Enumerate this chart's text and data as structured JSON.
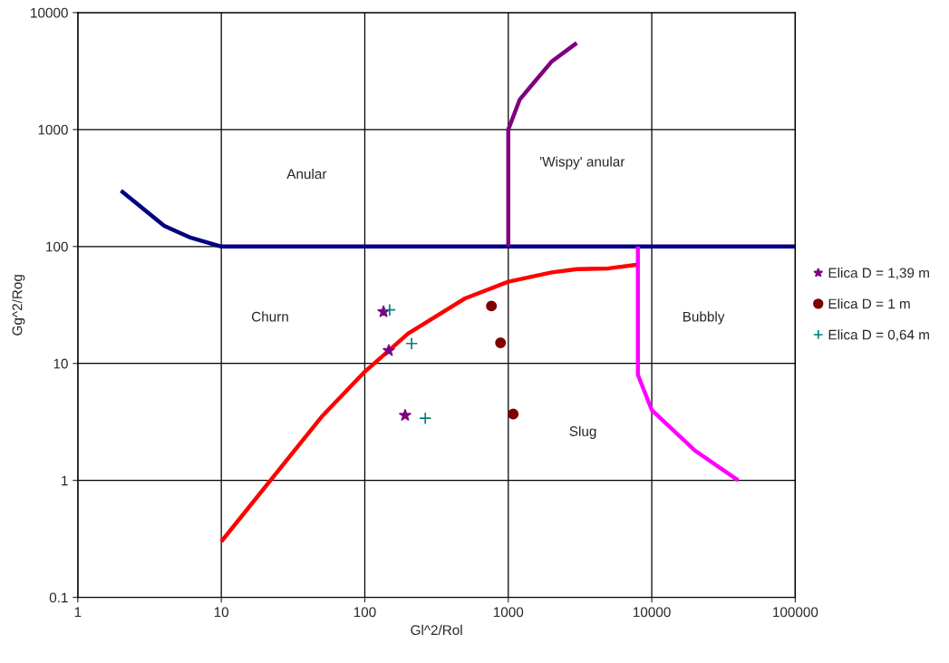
{
  "chart_data": {
    "type": "line",
    "xlabel": "Gl^2/Rol",
    "ylabel": "Gg^2/Rog",
    "log": "xy",
    "grid": true,
    "legend": "right",
    "xlim": [
      1,
      100000
    ],
    "xticks": [
      1,
      10,
      100,
      1000,
      10000,
      100000
    ],
    "ylim": [
      0.1,
      10000
    ],
    "yticks": [
      0.1,
      1,
      10,
      100,
      1000,
      10000
    ],
    "series": [
      {
        "color": "#000080",
        "marker": "none",
        "x": [
          2,
          4,
          6,
          10,
          100000
        ],
        "values": [
          300,
          150,
          120,
          100,
          100
        ]
      },
      {
        "color": "#800080",
        "marker": "none",
        "x": [
          1000,
          1000,
          1200,
          1500,
          2000,
          3000
        ],
        "values": [
          100,
          1000,
          1800,
          2500,
          3800,
          5500
        ]
      },
      {
        "color": "#ff0000",
        "marker": "none",
        "x": [
          10,
          50,
          100,
          200,
          500,
          1000,
          2000,
          3000,
          5000,
          8000
        ],
        "values": [
          0.3,
          3.5,
          8.5,
          18,
          36,
          50,
          60,
          64,
          65,
          70
        ]
      },
      {
        "color": "#ff00ff",
        "marker": "none",
        "x": [
          8000,
          8000,
          10000,
          20000,
          40000
        ],
        "values": [
          100,
          8,
          4,
          1.8,
          1
        ]
      },
      {
        "type": "scatter",
        "name": "Elica D = 1,39 m",
        "color": "#800080",
        "marker": "star",
        "x": [
          135,
          147,
          191
        ],
        "values": [
          27.7,
          12.9,
          3.6
        ]
      },
      {
        "type": "scatter",
        "name": "Elica D = 1 m",
        "color": "#800000",
        "marker": "circle",
        "x": [
          763,
          883,
          1082
        ],
        "values": [
          31,
          15,
          3.7
        ]
      },
      {
        "type": "scatter",
        "name": "Elica D = 0,64 m",
        "color": "#008080",
        "marker": "cross",
        "x": [
          149,
          212,
          264
        ],
        "values": [
          28.7,
          14.8,
          3.4
        ]
      }
    ],
    "annotations": [
      "Anular",
      "'Wispy' anular",
      "Churn",
      "Bubbly",
      "Slug"
    ]
  }
}
